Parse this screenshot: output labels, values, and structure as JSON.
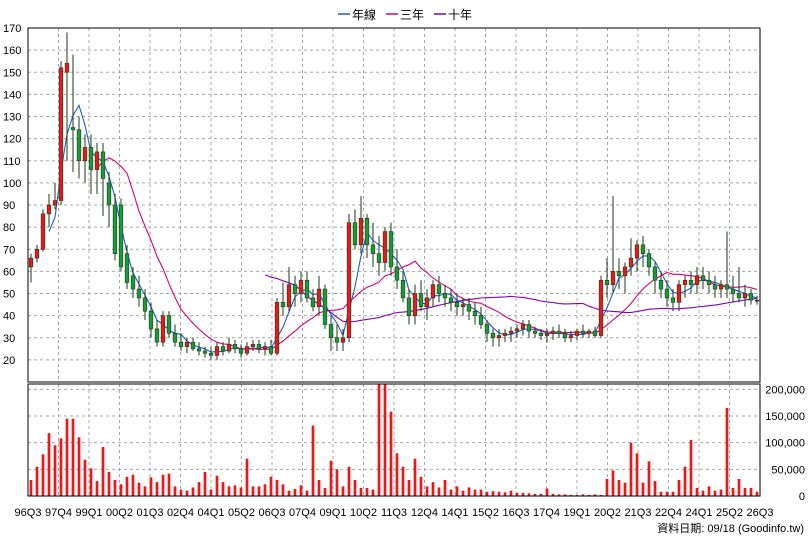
{
  "chart_data": {
    "type": "candlestick",
    "legend": [
      {
        "name": "年線",
        "color": "#1f5fbf"
      },
      {
        "name": "三年",
        "color": "#e0006f"
      },
      {
        "name": "十年",
        "color": "#8000c0"
      }
    ],
    "legend_position": "top-center",
    "grid": true,
    "price_axis": {
      "ylim": [
        10,
        170
      ],
      "ticks": [
        "170",
        "160",
        "150",
        "140",
        "130",
        "120",
        "110",
        "100",
        "90",
        "80",
        "70",
        "60",
        "50",
        "40",
        "30",
        "20"
      ]
    },
    "volume_axis": {
      "ylim": [
        0,
        210000
      ],
      "ticks": [
        "200,000",
        "150,000",
        "100,000",
        "50,000",
        "0"
      ]
    },
    "x_tick_labels": [
      "96Q3",
      "97Q4",
      "99Q1",
      "00Q2",
      "01Q3",
      "02Q4",
      "04Q1",
      "05Q2",
      "06Q3",
      "07Q4",
      "09Q1",
      "10Q2",
      "11Q3",
      "12Q4",
      "14Q1",
      "15Q2",
      "16Q3",
      "17Q4",
      "19Q1",
      "20Q2",
      "21Q3",
      "22Q4",
      "24Q1",
      "25Q2",
      "26Q3"
    ],
    "footer": "資料日期: 09/18  (Goodinfo.tw)",
    "up_color": "#e8191c",
    "down_color": "#1a9a3a",
    "volume_color": "#e8191c",
    "ohlc": [
      [
        62,
        68,
        55,
        66
      ],
      [
        66,
        72,
        64,
        70
      ],
      [
        70,
        88,
        69,
        86
      ],
      [
        86,
        95,
        80,
        90
      ],
      [
        90,
        100,
        88,
        92
      ],
      [
        92,
        155,
        90,
        152
      ],
      [
        150,
        168,
        110,
        154
      ],
      [
        125,
        158,
        105,
        124
      ],
      [
        124,
        130,
        102,
        110
      ],
      [
        110,
        122,
        100,
        116
      ],
      [
        116,
        122,
        95,
        106
      ],
      [
        106,
        118,
        95,
        114
      ],
      [
        114,
        118,
        85,
        102
      ],
      [
        100,
        105,
        80,
        90
      ],
      [
        90,
        95,
        65,
        68
      ],
      [
        90,
        93,
        60,
        62
      ],
      [
        68,
        72,
        52,
        55
      ],
      [
        58,
        62,
        48,
        52
      ],
      [
        52,
        58,
        44,
        48
      ],
      [
        48,
        52,
        38,
        42
      ],
      [
        42,
        46,
        30,
        34
      ],
      [
        34,
        38,
        26,
        28
      ],
      [
        28,
        42,
        26,
        40
      ],
      [
        40,
        42,
        30,
        32
      ],
      [
        32,
        36,
        26,
        28
      ],
      [
        28,
        32,
        24,
        26
      ],
      [
        26,
        30,
        23,
        28
      ],
      [
        28,
        30,
        24,
        25
      ],
      [
        25,
        28,
        22,
        24
      ],
      [
        24,
        26,
        21,
        23
      ],
      [
        23,
        26,
        20,
        22
      ],
      [
        22,
        28,
        20,
        26
      ],
      [
        26,
        28,
        22,
        24
      ],
      [
        24,
        30,
        23,
        27
      ],
      [
        27,
        29,
        23,
        25
      ],
      [
        25,
        27,
        21,
        23
      ],
      [
        23,
        28,
        22,
        26
      ],
      [
        26,
        29,
        24,
        27
      ],
      [
        27,
        29,
        23,
        25
      ],
      [
        25,
        28,
        22,
        26
      ],
      [
        26,
        29,
        22,
        23
      ],
      [
        23,
        48,
        22,
        46
      ],
      [
        46,
        55,
        40,
        44
      ],
      [
        44,
        62,
        42,
        54
      ],
      [
        54,
        58,
        44,
        50
      ],
      [
        50,
        60,
        46,
        56
      ],
      [
        56,
        60,
        46,
        48
      ],
      [
        48,
        52,
        42,
        44
      ],
      [
        44,
        58,
        40,
        52
      ],
      [
        52,
        54,
        34,
        36
      ],
      [
        36,
        40,
        24,
        30
      ],
      [
        30,
        36,
        24,
        28
      ],
      [
        28,
        34,
        24,
        30
      ],
      [
        30,
        86,
        28,
        82
      ],
      [
        82,
        88,
        70,
        72
      ],
      [
        72,
        94,
        68,
        84
      ],
      [
        84,
        86,
        66,
        72
      ],
      [
        72,
        82,
        62,
        68
      ],
      [
        68,
        76,
        58,
        64
      ],
      [
        64,
        80,
        60,
        78
      ],
      [
        78,
        82,
        58,
        62
      ],
      [
        62,
        70,
        52,
        56
      ],
      [
        56,
        60,
        46,
        48
      ],
      [
        48,
        52,
        36,
        40
      ],
      [
        40,
        54,
        36,
        50
      ],
      [
        50,
        56,
        42,
        44
      ],
      [
        44,
        52,
        38,
        48
      ],
      [
        48,
        56,
        44,
        54
      ],
      [
        54,
        58,
        46,
        50
      ],
      [
        50,
        54,
        44,
        48
      ],
      [
        48,
        52,
        42,
        46
      ],
      [
        46,
        50,
        40,
        44
      ],
      [
        44,
        48,
        40,
        45
      ],
      [
        45,
        48,
        38,
        42
      ],
      [
        42,
        46,
        36,
        40
      ],
      [
        40,
        44,
        34,
        36
      ],
      [
        36,
        38,
        28,
        32
      ],
      [
        32,
        34,
        26,
        30
      ],
      [
        30,
        34,
        26,
        31
      ],
      [
        31,
        34,
        28,
        32
      ],
      [
        32,
        35,
        28,
        33
      ],
      [
        33,
        36,
        30,
        34
      ],
      [
        34,
        38,
        31,
        36
      ],
      [
        36,
        38,
        30,
        33
      ],
      [
        33,
        35,
        30,
        32
      ],
      [
        32,
        34,
        29,
        31
      ],
      [
        31,
        34,
        28,
        32
      ],
      [
        32,
        35,
        29,
        33
      ],
      [
        33,
        36,
        30,
        32
      ],
      [
        32,
        34,
        28,
        30
      ],
      [
        30,
        33,
        28,
        31
      ],
      [
        31,
        34,
        29,
        33
      ],
      [
        33,
        36,
        30,
        32
      ],
      [
        32,
        34,
        30,
        33
      ],
      [
        33,
        35,
        30,
        31
      ],
      [
        31,
        58,
        30,
        56
      ],
      [
        56,
        66,
        48,
        54
      ],
      [
        54,
        94,
        50,
        60
      ],
      [
        60,
        66,
        52,
        58
      ],
      [
        58,
        64,
        50,
        62
      ],
      [
        62,
        75,
        58,
        66
      ],
      [
        66,
        74,
        60,
        72
      ],
      [
        72,
        76,
        62,
        68
      ],
      [
        68,
        70,
        58,
        62
      ],
      [
        62,
        64,
        50,
        56
      ],
      [
        56,
        60,
        48,
        52
      ],
      [
        52,
        56,
        44,
        48
      ],
      [
        48,
        52,
        42,
        46
      ],
      [
        46,
        56,
        42,
        54
      ],
      [
        54,
        58,
        48,
        56
      ],
      [
        56,
        60,
        50,
        54
      ],
      [
        54,
        62,
        50,
        58
      ],
      [
        58,
        62,
        52,
        56
      ],
      [
        56,
        60,
        50,
        54
      ],
      [
        54,
        58,
        48,
        52
      ],
      [
        52,
        56,
        48,
        54
      ],
      [
        54,
        78,
        48,
        52
      ],
      [
        52,
        58,
        46,
        50
      ],
      [
        50,
        62,
        46,
        48
      ],
      [
        48,
        54,
        44,
        50
      ],
      [
        50,
        52,
        45,
        47
      ],
      [
        47,
        49,
        45,
        47
      ]
    ],
    "volume": [
      30000,
      55000,
      78000,
      118000,
      95000,
      108000,
      145000,
      145000,
      110000,
      68000,
      52000,
      28000,
      92000,
      45000,
      30000,
      22000,
      36000,
      40000,
      25000,
      18000,
      35000,
      26000,
      40000,
      42000,
      18000,
      12000,
      10000,
      16000,
      26000,
      45000,
      12000,
      38000,
      26000,
      18000,
      20000,
      16000,
      70000,
      18000,
      18000,
      22000,
      36000,
      30000,
      22000,
      10000,
      13000,
      20000,
      10000,
      132000,
      30000,
      15000,
      66000,
      50000,
      18000,
      55000,
      30000,
      15000,
      15000,
      12000,
      210000,
      210000,
      158000,
      80000,
      55000,
      30000,
      70000,
      36000,
      18000,
      26000,
      16000,
      30000,
      12000,
      18000,
      10000,
      16000,
      12000,
      12000,
      8000,
      9000,
      8000,
      7000,
      10000,
      6000,
      6000,
      5000,
      4000,
      4000,
      14000,
      4000,
      3000,
      3000,
      2000,
      2000,
      3000,
      2000,
      3000,
      2000,
      32000,
      48000,
      30000,
      25000,
      100000,
      80000,
      25000,
      65000,
      28000,
      8000,
      8000,
      8000,
      30000,
      55000,
      105000,
      15000,
      10000,
      18000,
      10000,
      12000,
      165000,
      15000,
      32000,
      15000,
      15000,
      8000
    ]
  }
}
